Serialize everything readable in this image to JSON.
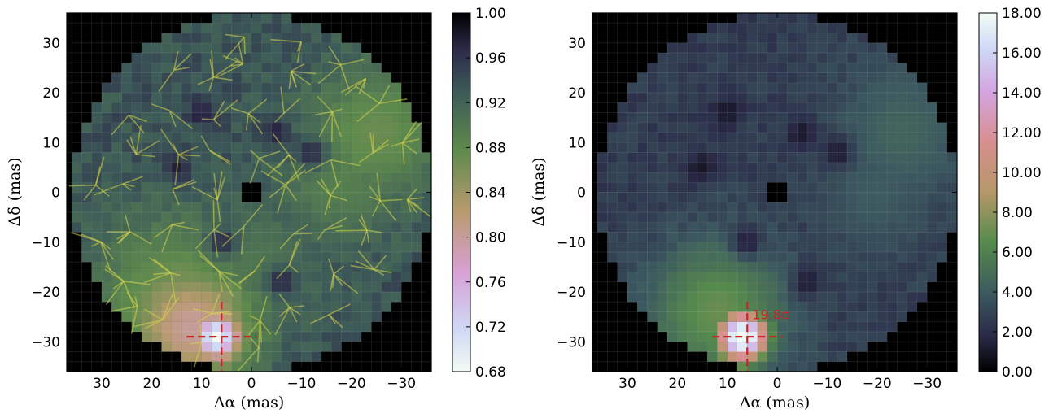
{
  "chart_data": [
    {
      "type": "heatmap",
      "title": "",
      "xlabel": "Δα (mas)",
      "ylabel": "Δδ (mas)",
      "xlim": [
        37,
        -36
      ],
      "ylim": [
        -36,
        36
      ],
      "x_ticks": [
        30,
        20,
        10,
        0,
        -10,
        -20,
        -30
      ],
      "x_tick_labels": [
        "30",
        "20",
        "10",
        "0",
        "−10",
        "−20",
        "−30"
      ],
      "y_ticks": [
        30,
        20,
        10,
        0,
        -10,
        -20,
        -30
      ],
      "y_tick_labels": [
        "30",
        "20",
        "10",
        "0",
        "−10",
        "−20",
        "−30"
      ],
      "grid": true,
      "field_radius": 36,
      "masked_center_box": [
        -2,
        2
      ],
      "colorbar": {
        "range": [
          0.68,
          1.0
        ],
        "ticks": [
          1.0,
          0.96,
          0.92,
          0.88,
          0.84,
          0.8,
          0.76,
          0.72,
          0.68
        ],
        "tick_labels": [
          "1.00",
          "0.96",
          "0.92",
          "0.88",
          "0.84",
          "0.80",
          "0.76",
          "0.72",
          "0.68"
        ]
      },
      "regions": [
        {
          "x": 7,
          "y": -29,
          "value": 0.68,
          "sigma": 3.5
        },
        {
          "x": 12,
          "y": -27,
          "value": 0.8,
          "sigma": 9
        },
        {
          "x": 15,
          "y": -22,
          "value": 0.86,
          "sigma": 12
        },
        {
          "x": -25,
          "y": 12,
          "value": 0.87,
          "sigma": 10
        },
        {
          "x": -18,
          "y": 2,
          "value": 0.89,
          "sigma": 9
        },
        {
          "x": 0,
          "y": -15,
          "value": 0.9,
          "sigma": 10
        }
      ],
      "dark_spots": [
        {
          "x": 10,
          "y": 16
        },
        {
          "x": -5,
          "y": 12
        },
        {
          "x": 6,
          "y": -10
        },
        {
          "x": -6,
          "y": -18
        },
        {
          "x": 15,
          "y": 5
        },
        {
          "x": -12,
          "y": 8
        }
      ],
      "marker": {
        "x": 6,
        "y": -29
      }
    },
    {
      "type": "heatmap",
      "title": "",
      "xlabel": "Δα (mas)",
      "ylabel": "Δδ (mas)",
      "xlim": [
        37,
        -36
      ],
      "ylim": [
        -36,
        36
      ],
      "x_ticks": [
        30,
        20,
        10,
        0,
        -10,
        -20,
        -30
      ],
      "x_tick_labels": [
        "30",
        "20",
        "10",
        "0",
        "−10",
        "−20",
        "−30"
      ],
      "y_ticks": [
        30,
        20,
        10,
        0,
        -10,
        -20,
        -30
      ],
      "y_tick_labels": [
        "30",
        "20",
        "10",
        "0",
        "−10",
        "−20",
        "−30"
      ],
      "grid": true,
      "field_radius": 36,
      "masked_center_box": [
        -2,
        2
      ],
      "colorbar": {
        "range": [
          0.0,
          18.0
        ],
        "ticks": [
          18,
          16,
          14,
          12,
          10,
          8,
          6,
          4,
          2,
          0
        ],
        "tick_labels": [
          "18.00",
          "16.00",
          "14.00",
          "12.00",
          "10.00",
          "8.00",
          "6.00",
          "4.00",
          "2.00",
          "0.00"
        ]
      },
      "regions": [
        {
          "x": 7,
          "y": -29,
          "value": 19.8,
          "sigma": 3.5
        },
        {
          "x": 12,
          "y": -24,
          "value": 7,
          "sigma": 10
        },
        {
          "x": -25,
          "y": 12,
          "value": 4.5,
          "sigma": 10
        },
        {
          "x": -20,
          "y": 0,
          "value": 4,
          "sigma": 9
        }
      ],
      "dark_spots": [
        {
          "x": 10,
          "y": 16
        },
        {
          "x": -5,
          "y": 12
        },
        {
          "x": 6,
          "y": -10
        },
        {
          "x": -6,
          "y": -18
        },
        {
          "x": 15,
          "y": 5
        },
        {
          "x": -12,
          "y": 8
        }
      ],
      "marker": {
        "x": 6,
        "y": -29
      },
      "annotation": {
        "text": "19.8σ",
        "x": 5,
        "y": -25.5
      }
    }
  ]
}
